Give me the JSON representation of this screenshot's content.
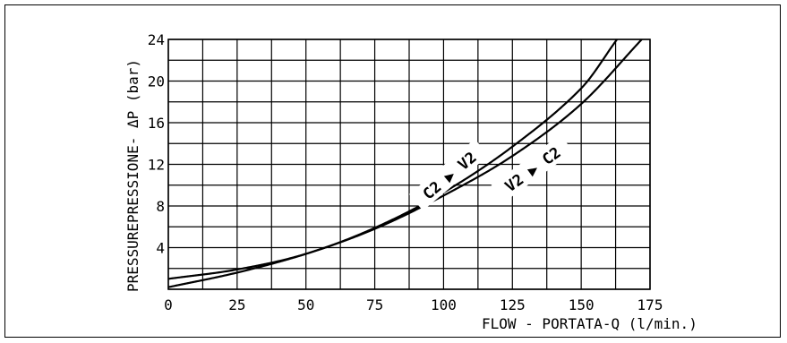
{
  "chart_data": {
    "type": "line",
    "xlabel": "FLOW - PORTATA-Q (l/min.)",
    "ylabel": "PRESSUREPRESSIONE- ΔP (bar)",
    "xlim": [
      0,
      175
    ],
    "ylim": [
      0,
      24
    ],
    "x_ticks": [
      0,
      25,
      50,
      75,
      100,
      125,
      150,
      175
    ],
    "y_ticks": [
      4,
      8,
      12,
      16,
      20,
      24
    ],
    "grid": true,
    "series": [
      {
        "name": "C2 ▶ V2",
        "x": [
          0,
          25,
          50,
          75,
          100,
          125,
          150,
          163
        ],
        "y": [
          1.0,
          1.9,
          3.4,
          5.9,
          9.3,
          13.7,
          19.3,
          24
        ]
      },
      {
        "name": "V2 ▶ C2",
        "x": [
          0,
          25,
          50,
          75,
          100,
          125,
          150,
          172
        ],
        "y": [
          0.2,
          1.6,
          3.4,
          5.8,
          9.0,
          12.8,
          17.8,
          24
        ]
      }
    ]
  }
}
